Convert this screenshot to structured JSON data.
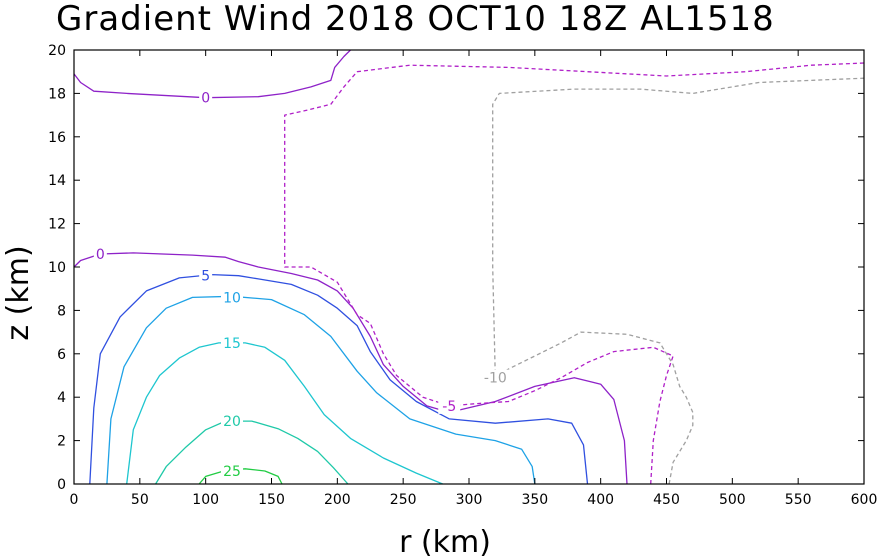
{
  "chart_data": {
    "type": "contour",
    "title": "Gradient Wind 2018 OCT10 18Z  AL1518",
    "xlabel": "r (km)",
    "ylabel": "z (km)",
    "xlim": [
      0,
      600
    ],
    "ylim": [
      0,
      20
    ],
    "xticks": [
      0,
      50,
      100,
      150,
      200,
      250,
      300,
      350,
      400,
      450,
      500,
      550,
      600
    ],
    "yticks": [
      0,
      2,
      4,
      6,
      8,
      10,
      12,
      14,
      16,
      18,
      20
    ],
    "grid": false,
    "contours": [
      {
        "level": 25,
        "color": "#22cc44",
        "dashed": false,
        "label": "25",
        "label_at": [
          120,
          0.6
        ],
        "points": [
          [
            95,
            0
          ],
          [
            100,
            0.35
          ],
          [
            115,
            0.62
          ],
          [
            130,
            0.7
          ],
          [
            145,
            0.6
          ],
          [
            155,
            0.35
          ],
          [
            158,
            0
          ]
        ]
      },
      {
        "level": 20,
        "color": "#1fc9a8",
        "dashed": false,
        "label": "20",
        "label_at": [
          120,
          2.9
        ],
        "points": [
          [
            62,
            0
          ],
          [
            70,
            0.8
          ],
          [
            85,
            1.7
          ],
          [
            100,
            2.5
          ],
          [
            115,
            2.9
          ],
          [
            135,
            2.9
          ],
          [
            155,
            2.55
          ],
          [
            170,
            2.1
          ],
          [
            185,
            1.5
          ],
          [
            197,
            0.75
          ],
          [
            208,
            0
          ]
        ]
      },
      {
        "level": 15,
        "color": "#1ec6cf",
        "dashed": false,
        "label": "15",
        "label_at": [
          120,
          6.5
        ],
        "points": [
          [
            40,
            0
          ],
          [
            45,
            2.5
          ],
          [
            55,
            4.0
          ],
          [
            65,
            5.0
          ],
          [
            80,
            5.8
          ],
          [
            95,
            6.3
          ],
          [
            110,
            6.5
          ],
          [
            130,
            6.5
          ],
          [
            145,
            6.3
          ],
          [
            160,
            5.7
          ],
          [
            175,
            4.5
          ],
          [
            190,
            3.2
          ],
          [
            210,
            2.1
          ],
          [
            235,
            1.2
          ],
          [
            260,
            0.5
          ],
          [
            280,
            0
          ]
        ]
      },
      {
        "level": 10,
        "color": "#1ea2e6",
        "dashed": false,
        "label": "10",
        "label_at": [
          120,
          8.6
        ],
        "points": [
          [
            25,
            0
          ],
          [
            28,
            3.0
          ],
          [
            38,
            5.4
          ],
          [
            55,
            7.2
          ],
          [
            70,
            8.1
          ],
          [
            90,
            8.6
          ],
          [
            120,
            8.65
          ],
          [
            150,
            8.5
          ],
          [
            175,
            7.8
          ],
          [
            195,
            6.8
          ],
          [
            215,
            5.2
          ],
          [
            230,
            4.2
          ],
          [
            255,
            3.0
          ],
          [
            290,
            2.3
          ],
          [
            320,
            2.0
          ],
          [
            340,
            1.6
          ],
          [
            348,
            0.8
          ],
          [
            350,
            0
          ]
        ]
      },
      {
        "level": 5,
        "color": "#3050e0",
        "dashed": false,
        "label": "5",
        "label_at": [
          100,
          9.6
        ],
        "points": [
          [
            12,
            0
          ],
          [
            15,
            3.5
          ],
          [
            20,
            6.0
          ],
          [
            35,
            7.7
          ],
          [
            55,
            8.9
          ],
          [
            80,
            9.5
          ],
          [
            105,
            9.65
          ],
          [
            125,
            9.6
          ],
          [
            140,
            9.45
          ],
          [
            165,
            9.2
          ],
          [
            185,
            8.7
          ],
          [
            200,
            8.1
          ],
          [
            215,
            7.3
          ],
          [
            225,
            6.1
          ],
          [
            240,
            4.8
          ],
          [
            260,
            3.8
          ],
          [
            285,
            3.0
          ],
          [
            320,
            2.8
          ],
          [
            360,
            3.0
          ],
          [
            378,
            2.8
          ],
          [
            387,
            1.8
          ],
          [
            390,
            0
          ]
        ]
      },
      {
        "level": 0,
        "color": "#8e22c8",
        "dashed": false,
        "label": "0",
        "label_at": [
          20,
          10.6
        ],
        "points": [
          [
            0,
            10.0
          ],
          [
            5,
            10.3
          ],
          [
            20,
            10.6
          ],
          [
            45,
            10.65
          ],
          [
            90,
            10.55
          ],
          [
            115,
            10.45
          ],
          [
            125,
            10.25
          ],
          [
            140,
            10.0
          ],
          [
            165,
            9.7
          ],
          [
            185,
            9.4
          ],
          [
            200,
            8.9
          ],
          [
            212,
            8.1
          ],
          [
            225,
            6.8
          ],
          [
            235,
            5.5
          ],
          [
            250,
            4.5
          ],
          [
            268,
            3.6
          ],
          [
            285,
            3.3
          ],
          [
            320,
            3.8
          ],
          [
            350,
            4.5
          ],
          [
            380,
            4.9
          ],
          [
            400,
            4.6
          ],
          [
            410,
            3.9
          ],
          [
            418,
            2.0
          ],
          [
            420,
            0
          ]
        ]
      },
      {
        "level": 0,
        "color": "#8e22c8",
        "dashed": false,
        "label": "0",
        "label_at": [
          100,
          17.8
        ],
        "points": [
          [
            0,
            18.9
          ],
          [
            5,
            18.5
          ],
          [
            15,
            18.1
          ],
          [
            40,
            18.0
          ],
          [
            100,
            17.8
          ],
          [
            140,
            17.85
          ],
          [
            160,
            18.0
          ],
          [
            180,
            18.3
          ],
          [
            195,
            18.6
          ],
          [
            198,
            19.2
          ],
          [
            205,
            19.7
          ],
          [
            210,
            20.0
          ]
        ]
      },
      {
        "level": -5,
        "color": "#b020c8",
        "dashed": true,
        "label": "-5",
        "label_at": [
          285,
          3.6
        ],
        "points": [
          [
            438,
            0
          ],
          [
            440,
            2.0
          ],
          [
            445,
            3.8
          ],
          [
            450,
            5.0
          ],
          [
            455,
            5.9
          ],
          [
            440,
            6.3
          ],
          [
            410,
            6.1
          ],
          [
            390,
            5.6
          ],
          [
            370,
            4.9
          ],
          [
            350,
            4.3
          ],
          [
            330,
            3.8
          ],
          [
            305,
            3.7
          ],
          [
            285,
            3.6
          ],
          [
            265,
            4.0
          ],
          [
            245,
            5.0
          ],
          [
            235,
            6.0
          ],
          [
            225,
            7.4
          ],
          [
            215,
            7.8
          ],
          [
            200,
            9.3
          ],
          [
            180,
            10.0
          ],
          [
            160,
            10.0
          ],
          [
            160,
            15.0
          ],
          [
            160,
            17.0
          ],
          [
            175,
            17.2
          ],
          [
            195,
            17.5
          ],
          [
            205,
            18.3
          ],
          [
            215,
            19.0
          ],
          [
            255,
            19.3
          ],
          [
            330,
            19.2
          ],
          [
            390,
            19.0
          ],
          [
            450,
            18.8
          ],
          [
            510,
            19.0
          ],
          [
            560,
            19.3
          ],
          [
            600,
            19.4
          ]
        ]
      },
      {
        "level": -10,
        "color": "#a0a0a0",
        "dashed": true,
        "label": "-10",
        "label_at": [
          320,
          4.9
        ],
        "points": [
          [
            452,
            0
          ],
          [
            455,
            1.0
          ],
          [
            465,
            2.0
          ],
          [
            470,
            2.7
          ],
          [
            470,
            3.3
          ],
          [
            465,
            4.0
          ],
          [
            460,
            4.5
          ],
          [
            455,
            5.5
          ],
          [
            445,
            6.5
          ],
          [
            420,
            6.9
          ],
          [
            385,
            7.0
          ],
          [
            370,
            6.5
          ],
          [
            350,
            5.9
          ],
          [
            330,
            5.3
          ],
          [
            320,
            4.9
          ],
          [
            318,
            10.0
          ],
          [
            318,
            14.0
          ],
          [
            318,
            17.5
          ],
          [
            323,
            18.0
          ],
          [
            380,
            18.2
          ],
          [
            430,
            18.2
          ],
          [
            470,
            18.0
          ],
          [
            520,
            18.5
          ],
          [
            600,
            18.7
          ]
        ]
      }
    ]
  }
}
